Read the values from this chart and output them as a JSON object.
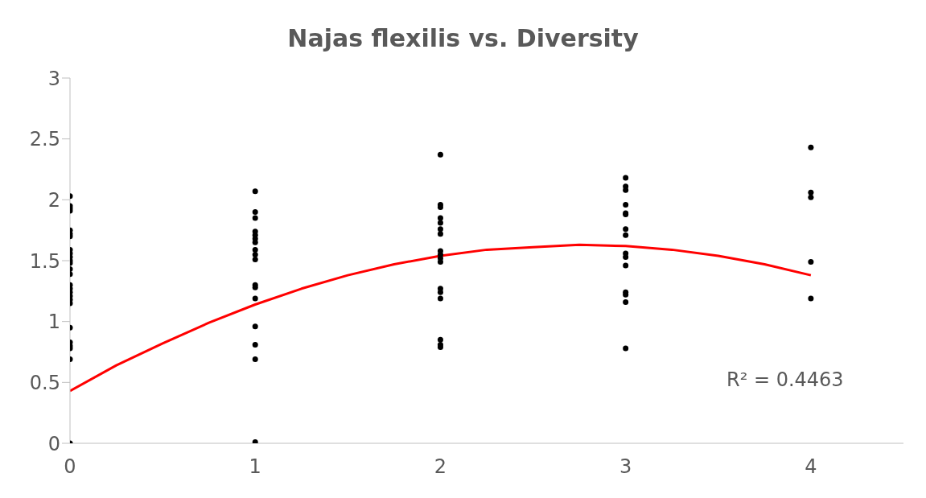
{
  "chart_data": {
    "type": "scatter",
    "title": "Najas flexilis vs. Diversity",
    "xlim": [
      0,
      4.5
    ],
    "xticks": [
      0,
      1,
      2,
      3,
      4
    ],
    "ylim": [
      0,
      3
    ],
    "yticks": [
      0,
      0.5,
      1,
      1.5,
      2,
      2.5,
      3
    ],
    "grid": false,
    "annotations": [
      "R² = 0.4463"
    ],
    "series": [
      {
        "marker": "circle",
        "color": "#000000",
        "x": [
          0,
          0,
          0,
          0,
          0,
          0,
          0,
          0,
          0,
          0,
          0,
          0,
          0,
          0,
          0,
          0,
          0,
          0,
          0,
          0,
          0,
          0,
          0,
          0,
          0,
          0,
          1,
          1,
          1,
          1,
          1,
          1,
          1,
          1,
          1,
          1,
          1,
          1,
          1,
          1,
          1,
          1,
          1,
          2,
          2,
          2,
          2,
          2,
          2,
          2,
          2,
          2,
          2,
          2,
          2,
          2,
          2,
          2,
          2,
          2,
          3,
          3,
          3,
          3,
          3,
          3,
          3,
          3,
          3,
          3,
          3,
          3,
          3,
          3,
          3,
          4,
          4,
          4,
          4,
          4
        ],
        "values": [
          2.03,
          1.95,
          1.93,
          1.91,
          1.75,
          1.72,
          1.7,
          1.59,
          1.56,
          1.53,
          1.5,
          1.48,
          1.43,
          1.39,
          1.3,
          1.27,
          1.24,
          1.21,
          1.18,
          1.15,
          0.95,
          0.83,
          0.8,
          0.78,
          0.69,
          0,
          2.07,
          1.9,
          1.85,
          1.74,
          1.71,
          1.68,
          1.65,
          1.59,
          1.55,
          1.51,
          1.3,
          1.28,
          1.19,
          0.96,
          0.81,
          0.69,
          0.01,
          2.37,
          1.96,
          1.94,
          1.85,
          1.81,
          1.76,
          1.72,
          1.58,
          1.55,
          1.52,
          1.49,
          1.27,
          1.24,
          1.19,
          0.85,
          0.81,
          0.79,
          2.18,
          2.11,
          2.08,
          1.96,
          1.89,
          1.88,
          1.76,
          1.71,
          1.56,
          1.53,
          1.46,
          1.24,
          1.22,
          1.16,
          0.78,
          2.43,
          2.06,
          2.02,
          1.49,
          1.19
        ]
      },
      {
        "type": "line",
        "marker": "none",
        "color": "#ff0000",
        "x": [
          0,
          0.25,
          0.5,
          0.75,
          1,
          1.25,
          1.5,
          1.75,
          2,
          2.25,
          2.5,
          2.75,
          3,
          3.25,
          3.5,
          3.75,
          4
        ],
        "values": [
          0.43,
          0.64,
          0.82,
          0.99,
          1.14,
          1.27,
          1.38,
          1.47,
          1.54,
          1.59,
          1.61,
          1.63,
          1.62,
          1.59,
          1.54,
          1.47,
          1.38
        ]
      }
    ]
  }
}
